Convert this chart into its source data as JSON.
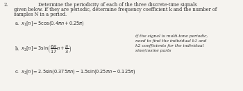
{
  "problem_number": "2.",
  "title_line1": "Determine the periodicity of each of the three discrete-time signals",
  "title_line2": "given below. If they are periodic, determine frequency coefficient k and the number of",
  "title_line3": "samples N in a period.",
  "part_a_label": "a.",
  "part_a_eq": "$x_1[n] = 5\\cos(0.4\\pi n + 0.25\\pi)$",
  "part_b_label": "b.",
  "part_b_eq": "$x_2[n] = 3\\sin\\!\\left(\\dfrac{6\\pi}{17}n + \\dfrac{\\pi}{3}\\right)$",
  "part_c_label": "c.",
  "part_c_eq": "$x_3[n] = 2.5\\sin(0.375\\pi n) - 1.5\\sin(0.25\\pi n - 0.125\\pi)$",
  "note_line1": "if the signal is multi-tone periodic,",
  "note_line2": "need to find the individual k1 and",
  "note_line3": "k2 coefficients for the individual",
  "note_line4": "sine/cosine parts",
  "bg_color": "#f5f3ef",
  "text_color": "#2b2b2b",
  "font_size_body": 4.8,
  "font_size_eq": 4.8,
  "font_size_note": 4.3
}
